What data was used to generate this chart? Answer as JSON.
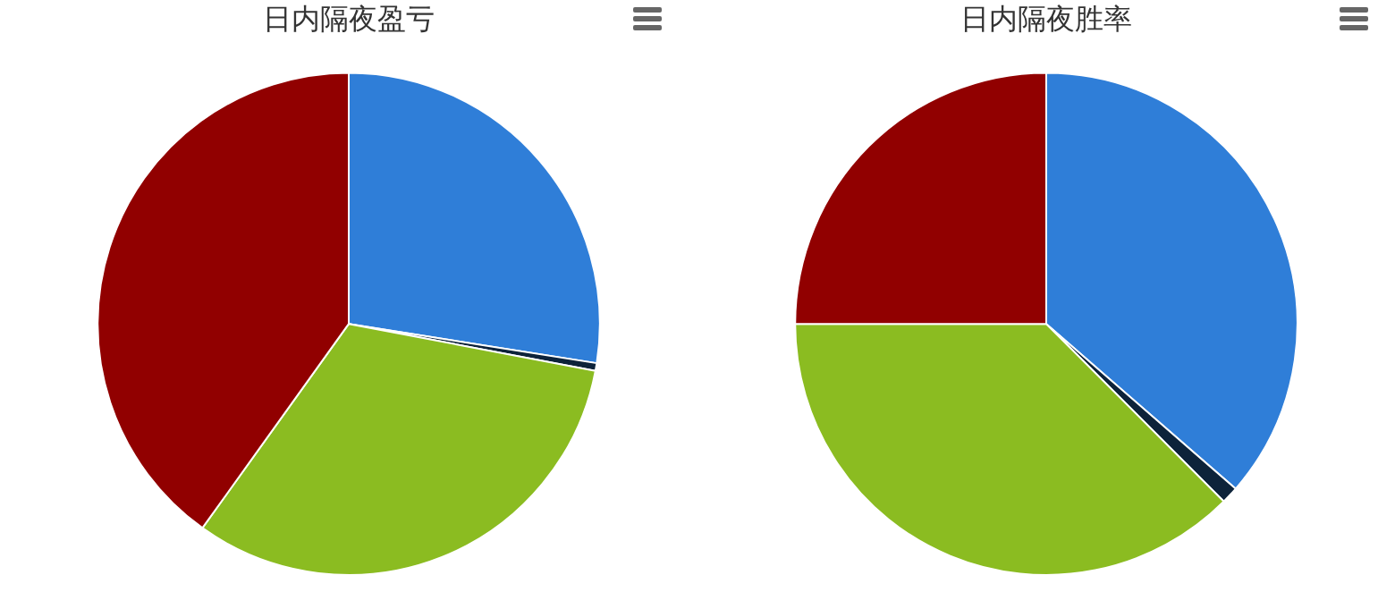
{
  "chart_data": [
    {
      "type": "pie",
      "title": "日内隔夜盈亏",
      "categories": [
        null,
        null,
        null,
        null
      ],
      "values": [
        27.5,
        0.5,
        31.9,
        40.1
      ],
      "colors": [
        "#2f7ed8",
        "#0d233a",
        "#8bbc21",
        "#910000"
      ],
      "legend": false
    },
    {
      "type": "pie",
      "title": "日内隔夜胜率",
      "categories": [
        null,
        null,
        null,
        null
      ],
      "values": [
        36.4,
        1.1,
        37.5,
        25.0
      ],
      "colors": [
        "#2f7ed8",
        "#0d233a",
        "#8bbc21",
        "#910000"
      ],
      "legend": false
    }
  ]
}
